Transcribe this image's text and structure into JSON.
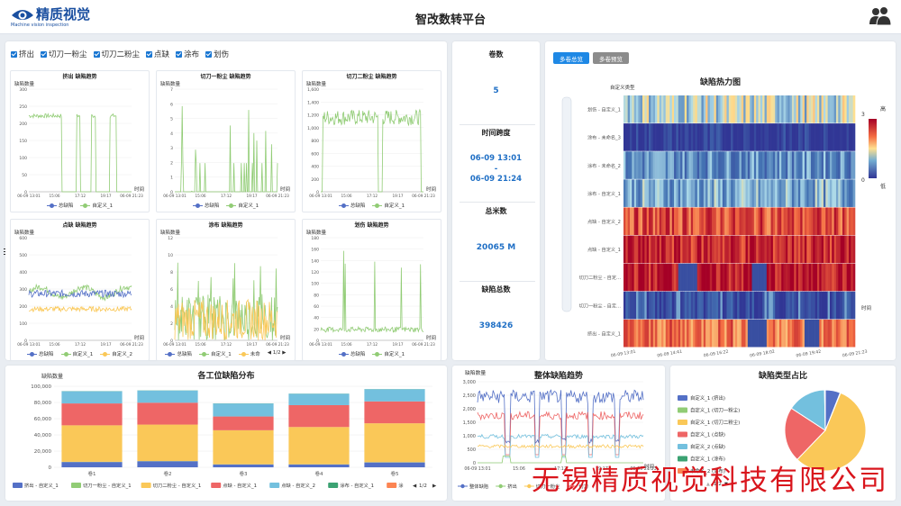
{
  "header": {
    "logo_cn": "精质视觉",
    "logo_en": "Machine vision inspection",
    "title": "智改数转平台"
  },
  "filters": [
    "挤出",
    "切刀一粉尘",
    "切刀二粉尘",
    "点缺",
    "涂布",
    "划伤"
  ],
  "small_charts": [
    {
      "title": "挤出 缺陷趋势",
      "ylabel": "缺陷数量",
      "xlabel": "时间",
      "yticks": [
        "300",
        "250",
        "200",
        "150",
        "100",
        "50",
        "0"
      ],
      "xticks": [
        "06-09 13:01",
        "15:06",
        "17:12",
        "19:17",
        "06-09 21:23"
      ],
      "legend": [
        "总缺陷",
        "自定义_1"
      ]
    },
    {
      "title": "切刀一粉尘 缺陷趋势",
      "ylabel": "缺陷数量",
      "xlabel": "时间",
      "yticks": [
        "7",
        "6",
        "5",
        "4",
        "3",
        "2",
        "1",
        "0"
      ],
      "xticks": [
        "06-09 13:01",
        "15:06",
        "17:12",
        "19:17",
        "06-09 21:23"
      ],
      "legend": [
        "总缺陷",
        "自定义_1"
      ]
    },
    {
      "title": "切刀二粉尘 缺陷趋势",
      "ylabel": "缺陷数量",
      "xlabel": "时间",
      "yticks": [
        "1,600",
        "1,400",
        "1,200",
        "1,000",
        "800",
        "600",
        "400",
        "200",
        "0"
      ],
      "xticks": [
        "06-09 13:01",
        "15:06",
        "17:12",
        "19:17",
        "06-09 21:23"
      ],
      "legend": [
        "总缺陷",
        "自定义_1"
      ]
    },
    {
      "title": "点缺 缺陷趋势",
      "ylabel": "缺陷数量",
      "xlabel": "时间",
      "yticks": [
        "600",
        "500",
        "400",
        "300",
        "200",
        "100",
        "0"
      ],
      "xticks": [
        "06-09 13:01",
        "15:06",
        "17:12",
        "19:17",
        "06-09 21:23"
      ],
      "legend": [
        "总缺陷",
        "自定义_1",
        "自定义_2"
      ]
    },
    {
      "title": "涂布 缺陷趋势",
      "ylabel": "缺陷数量",
      "xlabel": "时间",
      "yticks": [
        "12",
        "10",
        "8",
        "6",
        "4",
        "2",
        "0"
      ],
      "xticks": [
        "06-09 13:01",
        "15:06",
        "17:12",
        "19:17",
        "06-09 21:23"
      ],
      "legend": [
        "总缺陷",
        "自定义_1",
        "未命"
      ],
      "pager": "1/2"
    },
    {
      "title": "划伤 缺陷趋势",
      "ylabel": "缺陷数量",
      "xlabel": "时间",
      "yticks": [
        "180",
        "160",
        "140",
        "120",
        "100",
        "80",
        "60",
        "40",
        "20",
        "0"
      ],
      "xticks": [
        "06-09 13:01",
        "15:06",
        "17:12",
        "19:17",
        "06-09 21:23"
      ],
      "legend": [
        "总缺陷",
        "自定义_1"
      ]
    }
  ],
  "stats": [
    {
      "label": "卷数",
      "value": "5"
    },
    {
      "label": "时间跨度",
      "value": "06-09 13:01",
      "value2": "-",
      "value3": "06-09 21:24"
    },
    {
      "label": "总米数",
      "value": "20065 M"
    },
    {
      "label": "缺陷总数",
      "value": "398426"
    }
  ],
  "heatmap": {
    "btn_active": "多卷总览",
    "btn_inactive": "多卷预览",
    "title": "缺陷热力图",
    "ylabel": "自定义类型",
    "xlabel": "时间",
    "rows": [
      "划伤 - 自定义_1",
      "涂布 - 未命名_3",
      "涂布 - 未命名_2",
      "涂布 - 自定义_1",
      "点缺 - 自定义_2",
      "点缺 - 自定义_1",
      "切刀二粉尘 - 自定...",
      "切刀一粉尘 - 自定...",
      "挤出 - 自定义_1"
    ],
    "xticks": [
      "06-09 13:01",
      "06-09 14:41",
      "06-09 16:22",
      "06-09 18:02",
      "06-09 19:42",
      "06-09 21:23"
    ],
    "scale_max": "3",
    "scale_min": "0",
    "scale_high": "高",
    "scale_low": "低",
    "colors": {
      "low": "#313695",
      "mid": "#e0f3f8",
      "high": "#a50026"
    }
  },
  "bar_panel": {
    "title": "各工位缺陷分布",
    "ylabel": "缺陷数量",
    "pager": "1/2",
    "legend": [
      "挤出 - 自定义_1",
      "切刀一粉尘 - 自定义_1",
      "切刀二粉尘 - 自定义_1",
      "点缺 - 自定义_1",
      "点缺 - 自定义_2",
      "涂布 - 自定义_1",
      "涂"
    ]
  },
  "trend_panel": {
    "title": "整体缺陷趋势",
    "ylabel": "缺陷数量",
    "xlabel": "时间",
    "yticks": [
      "3,000",
      "2,500",
      "2,000",
      "1,500",
      "1,000",
      "500",
      "0"
    ],
    "xticks": [
      "06-09 13:01",
      "15:06",
      "17:12",
      "19:17",
      "06-09 21:23"
    ],
    "legend": [
      "整体缺陷",
      "挤出",
      "切刀一粉尘",
      "切刀"
    ]
  },
  "pie_panel": {
    "title": "缺陷类型占比",
    "legend": [
      "自定义_1 (挤出)",
      "自定义_1 (切刀一粉尘)",
      "自定义_1 (切刀二粉尘)",
      "自定义_1 (点缺)",
      "自定义_2 (点缺)",
      "自定义_1 (涂布)",
      "未命名_2 (涂布)"
    ],
    "pager": "1/2"
  },
  "chart_data": [
    {
      "type": "bar",
      "title": "各工位缺陷分布",
      "ylabel": "缺陷数量",
      "categories": [
        "卷1",
        "卷2",
        "卷3",
        "卷4",
        "卷5"
      ],
      "ylim": [
        0,
        100000
      ],
      "yticks": [
        0,
        20000,
        40000,
        60000,
        80000,
        100000
      ],
      "series": [
        {
          "name": "挤出 - 自定义_1",
          "color": "#5470c6",
          "values": [
            6500,
            7500,
            3500,
            3500,
            6000
          ]
        },
        {
          "name": "切刀一粉尘 - 自定义_1",
          "color": "#91cc75",
          "values": [
            300,
            200,
            200,
            200,
            300
          ]
        },
        {
          "name": "切刀二粉尘 - 自定义_1",
          "color": "#fac858",
          "values": [
            45000,
            45000,
            42000,
            46000,
            48000
          ]
        },
        {
          "name": "点缺 - 自定义_1",
          "color": "#ee6666",
          "values": [
            27000,
            27000,
            17000,
            27000,
            27000
          ]
        },
        {
          "name": "点缺 - 自定义_2",
          "color": "#73c0de",
          "values": [
            15000,
            15000,
            16000,
            14000,
            15000
          ]
        },
        {
          "name": "涂布 - 自定义_1",
          "color": "#3ba272",
          "values": [
            200,
            200,
            200,
            200,
            200
          ]
        }
      ]
    },
    {
      "type": "pie",
      "title": "缺陷类型占比",
      "slices": [
        {
          "name": "自定义_1 (挤出)",
          "color": "#5470c6",
          "value": 6
        },
        {
          "name": "自定义_1 (切刀一粉尘)",
          "color": "#91cc75",
          "value": 0.2
        },
        {
          "name": "自定义_1 (切刀二粉尘)",
          "color": "#fac858",
          "value": 56
        },
        {
          "name": "自定义_1 (点缺)",
          "color": "#ee6666",
          "value": 22
        },
        {
          "name": "自定义_2 (点缺)",
          "color": "#73c0de",
          "value": 15.5
        },
        {
          "name": "自定义_1 (涂布)",
          "color": "#3ba272",
          "value": 0.2
        },
        {
          "name": "未命名_2 (涂布)",
          "color": "#fc8452",
          "value": 0.1
        }
      ]
    }
  ],
  "watermark": "无锡精质视觉科技有限公司"
}
